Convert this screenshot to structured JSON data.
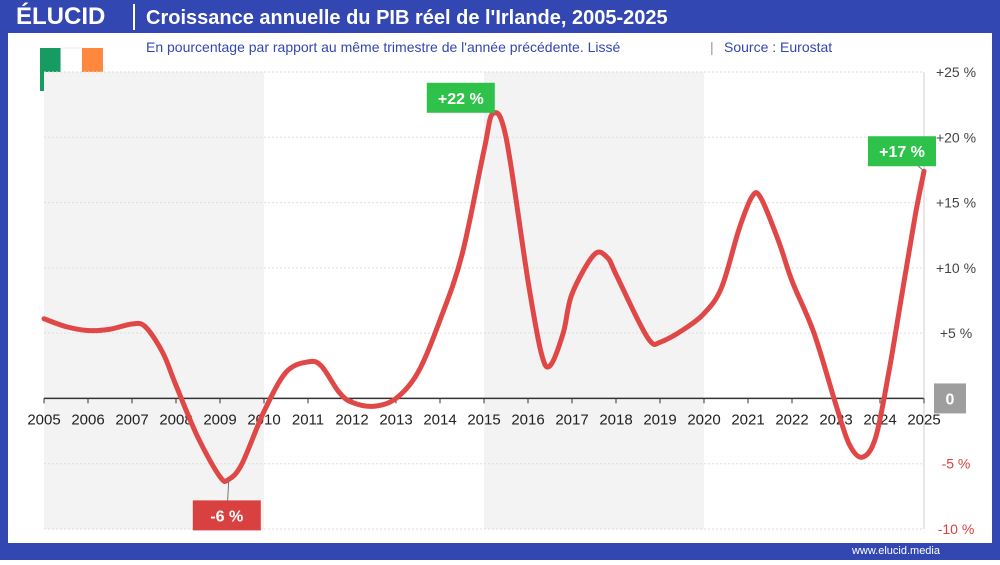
{
  "brand": "ÉLUCID",
  "footer": "www.elucid.media",
  "chart_data": {
    "type": "line",
    "title": "Croissance annuelle du PIB réel de l'Irlande, 2005-2025",
    "subtitle": "En pourcentage par rapport au même trimestre de l'année précédente. Lissé",
    "source": "Source : Eurostat",
    "x": [
      2005,
      2005.5,
      2006,
      2006.5,
      2007,
      2007.3,
      2007.7,
      2008,
      2008.5,
      2009,
      2009.2,
      2009.5,
      2010,
      2010.5,
      2011,
      2011.3,
      2011.7,
      2012,
      2012.5,
      2013,
      2013.5,
      2014,
      2014.5,
      2015,
      2015.2,
      2015.5,
      2016,
      2016.3,
      2016.5,
      2016.8,
      2017,
      2017.5,
      2017.8,
      2018,
      2018.5,
      2018.8,
      2019,
      2019.5,
      2020,
      2020.4,
      2020.8,
      2021.1,
      2021.3,
      2021.7,
      2022,
      2022.5,
      2023,
      2023.3,
      2023.6,
      2023.9,
      2024.2,
      2024.5,
      2024.8,
      2025
    ],
    "series": [
      {
        "name": "PIB réel",
        "color": "#e04848",
        "values": [
          6.1,
          5.5,
          5.2,
          5.3,
          5.7,
          5.5,
          3.5,
          1,
          -3,
          -6,
          -6.2,
          -5,
          -1,
          2,
          2.8,
          2.5,
          0.5,
          -0.3,
          -0.6,
          0,
          2,
          6,
          11,
          19,
          21.8,
          20,
          9,
          3.5,
          2.5,
          5,
          8,
          11,
          10.8,
          9.5,
          6,
          4.3,
          4.3,
          5.2,
          6.5,
          8.5,
          13,
          15.5,
          15.3,
          12,
          9,
          5,
          -0.5,
          -3.5,
          -4.5,
          -3,
          2,
          8,
          14,
          17.4
        ]
      }
    ],
    "annotations": [
      {
        "x": 2015.2,
        "y": 21.8,
        "label": "+22 %",
        "color": "#2fc24a"
      },
      {
        "x": 2025,
        "y": 17.4,
        "label": "+17 %",
        "color": "#2fc24a"
      },
      {
        "x": 2009.2,
        "y": -6.2,
        "label": "-6 %",
        "color": "#d94040"
      }
    ],
    "xlim": [
      2005,
      2025
    ],
    "xticks": [
      2005,
      2006,
      2007,
      2008,
      2009,
      2010,
      2011,
      2012,
      2013,
      2014,
      2015,
      2016,
      2017,
      2018,
      2019,
      2020,
      2021,
      2022,
      2023,
      2024,
      2025
    ],
    "ylim": [
      -10,
      25
    ],
    "yticks": [
      {
        "value": 25,
        "label": "+25 %"
      },
      {
        "value": 20,
        "label": "+20 %"
      },
      {
        "value": 15,
        "label": "+15 %"
      },
      {
        "value": 10,
        "label": "+10 %"
      },
      {
        "value": 5,
        "label": "+5 %"
      },
      0,
      {
        "value": -5,
        "label": "-5 %"
      },
      {
        "value": -10,
        "label": "-10 %"
      }
    ],
    "shaded": [
      [
        2005,
        2010
      ],
      [
        2015,
        2020
      ]
    ],
    "grid": true
  }
}
